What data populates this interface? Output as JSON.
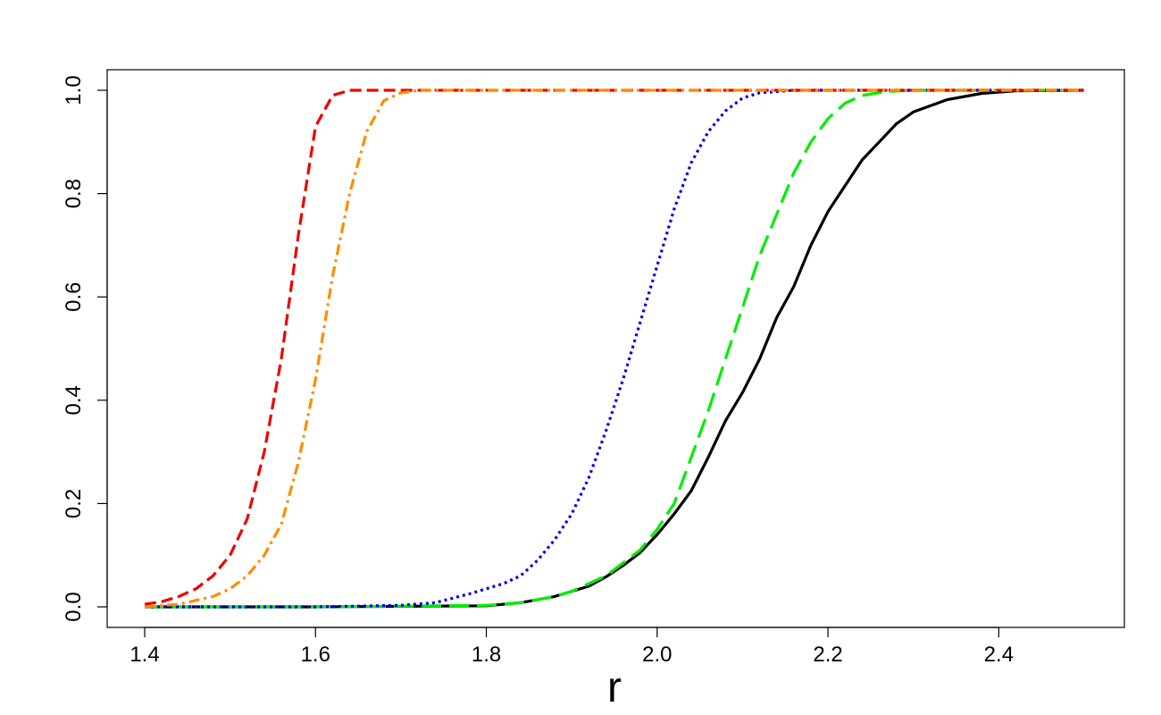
{
  "chart_data": {
    "type": "line",
    "title": "",
    "xlabel": "r",
    "ylabel": "",
    "xlim": [
      1.4,
      2.5
    ],
    "ylim": [
      0.0,
      1.0
    ],
    "xticks": [
      "1.4",
      "1.6",
      "1.8",
      "2.0",
      "2.2",
      "2.4"
    ],
    "yticks": [
      "0.0",
      "0.2",
      "0.4",
      "0.6",
      "0.8",
      "1.0"
    ],
    "grid": false,
    "legend": "none",
    "series": [
      {
        "color": "#000000",
        "style": "solid",
        "points": [
          [
            1.4,
            0
          ],
          [
            1.6,
            0
          ],
          [
            1.8,
            0.002
          ],
          [
            1.84,
            0.008
          ],
          [
            1.88,
            0.02
          ],
          [
            1.92,
            0.04
          ],
          [
            1.94,
            0.058
          ],
          [
            1.96,
            0.08
          ],
          [
            1.98,
            0.105
          ],
          [
            2.0,
            0.14
          ],
          [
            2.02,
            0.18
          ],
          [
            2.04,
            0.225
          ],
          [
            2.06,
            0.29
          ],
          [
            2.08,
            0.36
          ],
          [
            2.1,
            0.415
          ],
          [
            2.12,
            0.48
          ],
          [
            2.14,
            0.56
          ],
          [
            2.16,
            0.62
          ],
          [
            2.18,
            0.7
          ],
          [
            2.2,
            0.765
          ],
          [
            2.22,
            0.815
          ],
          [
            2.24,
            0.865
          ],
          [
            2.26,
            0.9
          ],
          [
            2.28,
            0.935
          ],
          [
            2.3,
            0.958
          ],
          [
            2.34,
            0.982
          ],
          [
            2.38,
            0.994
          ],
          [
            2.42,
            0.999
          ],
          [
            2.5,
            1.0
          ]
        ]
      },
      {
        "color": "#00ee00",
        "style": "longdash",
        "points": [
          [
            1.4,
            0
          ],
          [
            1.6,
            0
          ],
          [
            1.8,
            0.003
          ],
          [
            1.84,
            0.008
          ],
          [
            1.88,
            0.02
          ],
          [
            1.9,
            0.03
          ],
          [
            1.92,
            0.045
          ],
          [
            1.94,
            0.06
          ],
          [
            1.96,
            0.085
          ],
          [
            1.98,
            0.11
          ],
          [
            2.0,
            0.15
          ],
          [
            2.02,
            0.2
          ],
          [
            2.04,
            0.29
          ],
          [
            2.06,
            0.38
          ],
          [
            2.08,
            0.48
          ],
          [
            2.1,
            0.58
          ],
          [
            2.12,
            0.68
          ],
          [
            2.14,
            0.76
          ],
          [
            2.16,
            0.84
          ],
          [
            2.18,
            0.9
          ],
          [
            2.2,
            0.945
          ],
          [
            2.22,
            0.975
          ],
          [
            2.24,
            0.99
          ],
          [
            2.27,
            0.998
          ],
          [
            2.3,
            1.0
          ],
          [
            2.5,
            1.0
          ]
        ]
      },
      {
        "color": "#0000ee",
        "style": "dotted",
        "points": [
          [
            1.4,
            0
          ],
          [
            1.6,
            0
          ],
          [
            1.7,
            0.003
          ],
          [
            1.74,
            0.008
          ],
          [
            1.78,
            0.025
          ],
          [
            1.82,
            0.045
          ],
          [
            1.84,
            0.06
          ],
          [
            1.86,
            0.09
          ],
          [
            1.88,
            0.13
          ],
          [
            1.9,
            0.18
          ],
          [
            1.92,
            0.25
          ],
          [
            1.94,
            0.34
          ],
          [
            1.96,
            0.44
          ],
          [
            1.98,
            0.55
          ],
          [
            2.0,
            0.66
          ],
          [
            2.02,
            0.77
          ],
          [
            2.04,
            0.86
          ],
          [
            2.06,
            0.92
          ],
          [
            2.08,
            0.96
          ],
          [
            2.1,
            0.985
          ],
          [
            2.12,
            0.995
          ],
          [
            2.16,
            1.0
          ],
          [
            2.5,
            1.0
          ]
        ]
      },
      {
        "color": "#ee0000",
        "style": "dashed",
        "points": [
          [
            1.4,
            0.005
          ],
          [
            1.42,
            0.01
          ],
          [
            1.44,
            0.02
          ],
          [
            1.46,
            0.035
          ],
          [
            1.48,
            0.06
          ],
          [
            1.5,
            0.1
          ],
          [
            1.52,
            0.17
          ],
          [
            1.54,
            0.3
          ],
          [
            1.56,
            0.48
          ],
          [
            1.58,
            0.72
          ],
          [
            1.6,
            0.93
          ],
          [
            1.62,
            0.99
          ],
          [
            1.64,
            1.0
          ],
          [
            2.5,
            1.0
          ]
        ]
      },
      {
        "color": "#ff8c00",
        "style": "dashdot",
        "points": [
          [
            1.4,
            0
          ],
          [
            1.44,
            0.005
          ],
          [
            1.48,
            0.02
          ],
          [
            1.5,
            0.035
          ],
          [
            1.52,
            0.06
          ],
          [
            1.54,
            0.1
          ],
          [
            1.56,
            0.16
          ],
          [
            1.58,
            0.28
          ],
          [
            1.6,
            0.44
          ],
          [
            1.62,
            0.64
          ],
          [
            1.64,
            0.8
          ],
          [
            1.66,
            0.92
          ],
          [
            1.68,
            0.98
          ],
          [
            1.7,
            0.995
          ],
          [
            1.72,
            1.0
          ],
          [
            2.5,
            1.0
          ]
        ]
      }
    ]
  }
}
